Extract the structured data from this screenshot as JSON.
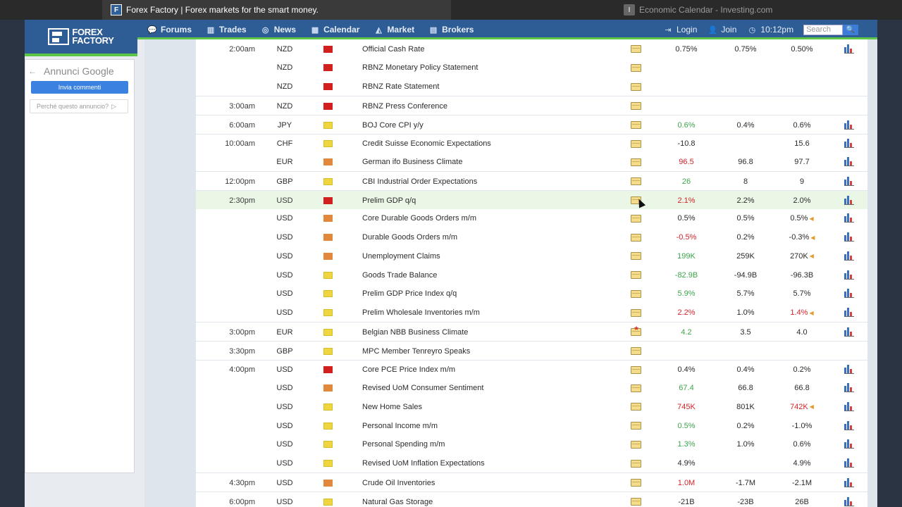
{
  "browser": {
    "active_tab": "Forex Factory | Forex markets for the smart money.",
    "inactive_tab": "Economic Calendar - Investing.com"
  },
  "site": {
    "logo_line1": "FOREX",
    "logo_line2": "FACTORY",
    "nav": [
      "Forums",
      "Trades",
      "News",
      "Calendar",
      "Market",
      "Brokers"
    ],
    "login": "Login",
    "join": "Join",
    "time": "10:12pm",
    "search_placeholder": "Search"
  },
  "ad": {
    "title": "Annunci Google",
    "feedback": "Invia commenti",
    "why": "Perché questo annuncio?"
  },
  "colors": {
    "impact_high": "#d2201f",
    "impact_medium": "#e2883c",
    "impact_low": "#efd641",
    "better": "#3da54b",
    "worse": "#d4232a"
  },
  "calendar": [
    {
      "time": "2:00am",
      "cur": "NZD",
      "impact": "red",
      "event": "Official Cash Rate",
      "actual": "0.75%",
      "aclass": "neutral",
      "forecast": "0.75%",
      "previous": "0.50%",
      "rev": false,
      "graph": true,
      "sep": true
    },
    {
      "time": "",
      "cur": "NZD",
      "impact": "red",
      "event": "RBNZ Monetary Policy Statement",
      "actual": "",
      "aclass": "neutral",
      "forecast": "",
      "previous": "",
      "rev": false,
      "graph": false,
      "sep": false
    },
    {
      "time": "",
      "cur": "NZD",
      "impact": "red",
      "event": "RBNZ Rate Statement",
      "actual": "",
      "aclass": "neutral",
      "forecast": "",
      "previous": "",
      "rev": false,
      "graph": false,
      "sep": false
    },
    {
      "time": "3:00am",
      "cur": "NZD",
      "impact": "red",
      "event": "RBNZ Press Conference",
      "actual": "",
      "aclass": "neutral",
      "forecast": "",
      "previous": "",
      "rev": false,
      "graph": false,
      "sep": true
    },
    {
      "time": "6:00am",
      "cur": "JPY",
      "impact": "yellow",
      "event": "BOJ Core CPI y/y",
      "actual": "0.6%",
      "aclass": "good",
      "forecast": "0.4%",
      "previous": "0.6%",
      "rev": false,
      "graph": true,
      "sep": true
    },
    {
      "time": "10:00am",
      "cur": "CHF",
      "impact": "yellow",
      "event": "Credit Suisse Economic Expectations",
      "actual": "-10.8",
      "aclass": "neutral",
      "forecast": "",
      "previous": "15.6",
      "rev": false,
      "graph": true,
      "sep": true
    },
    {
      "time": "",
      "cur": "EUR",
      "impact": "orange",
      "event": "German ifo Business Climate",
      "actual": "96.5",
      "aclass": "bad",
      "forecast": "96.8",
      "previous": "97.7",
      "rev": false,
      "graph": true,
      "sep": false
    },
    {
      "time": "12:00pm",
      "cur": "GBP",
      "impact": "yellow",
      "event": "CBI Industrial Order Expectations",
      "actual": "26",
      "aclass": "good",
      "forecast": "8",
      "previous": "9",
      "rev": false,
      "graph": true,
      "sep": true
    },
    {
      "time": "2:30pm",
      "cur": "USD",
      "impact": "red",
      "event": "Prelim GDP q/q",
      "actual": "2.1%",
      "aclass": "bad",
      "forecast": "2.2%",
      "previous": "2.0%",
      "rev": false,
      "graph": true,
      "sep": true,
      "hl": true
    },
    {
      "time": "",
      "cur": "USD",
      "impact": "orange",
      "event": "Core Durable Goods Orders m/m",
      "actual": "0.5%",
      "aclass": "neutral",
      "forecast": "0.5%",
      "previous": "0.5%",
      "rev": true,
      "graph": true,
      "sep": false
    },
    {
      "time": "",
      "cur": "USD",
      "impact": "orange",
      "event": "Durable Goods Orders m/m",
      "actual": "-0.5%",
      "aclass": "bad",
      "forecast": "0.2%",
      "previous": "-0.3%",
      "rev": true,
      "graph": true,
      "sep": false
    },
    {
      "time": "",
      "cur": "USD",
      "impact": "orange",
      "event": "Unemployment Claims",
      "actual": "199K",
      "aclass": "good",
      "forecast": "259K",
      "previous": "270K",
      "rev": true,
      "graph": true,
      "sep": false
    },
    {
      "time": "",
      "cur": "USD",
      "impact": "yellow",
      "event": "Goods Trade Balance",
      "actual": "-82.9B",
      "aclass": "good",
      "forecast": "-94.9B",
      "previous": "-96.3B",
      "rev": false,
      "graph": true,
      "sep": false
    },
    {
      "time": "",
      "cur": "USD",
      "impact": "yellow",
      "event": "Prelim GDP Price Index q/q",
      "actual": "5.9%",
      "aclass": "good",
      "forecast": "5.7%",
      "previous": "5.7%",
      "rev": false,
      "graph": true,
      "sep": false
    },
    {
      "time": "",
      "cur": "USD",
      "impact": "yellow",
      "event": "Prelim Wholesale Inventories m/m",
      "actual": "2.2%",
      "aclass": "bad",
      "forecast": "1.0%",
      "previous": "1.4%",
      "pclass": "bad",
      "rev": true,
      "graph": true,
      "sep": false
    },
    {
      "time": "3:00pm",
      "cur": "EUR",
      "impact": "yellow",
      "event": "Belgian NBB Business Climate",
      "actual": "4.2",
      "aclass": "good",
      "forecast": "3.5",
      "previous": "4.0",
      "rev": false,
      "graph": true,
      "sep": true,
      "star": true
    },
    {
      "time": "3:30pm",
      "cur": "GBP",
      "impact": "yellow",
      "event": "MPC Member Tenreyro Speaks",
      "actual": "",
      "aclass": "neutral",
      "forecast": "",
      "previous": "",
      "rev": false,
      "graph": false,
      "sep": true
    },
    {
      "time": "4:00pm",
      "cur": "USD",
      "impact": "red",
      "event": "Core PCE Price Index m/m",
      "actual": "0.4%",
      "aclass": "neutral",
      "forecast": "0.4%",
      "previous": "0.2%",
      "rev": false,
      "graph": true,
      "sep": true
    },
    {
      "time": "",
      "cur": "USD",
      "impact": "orange",
      "event": "Revised UoM Consumer Sentiment",
      "actual": "67.4",
      "aclass": "good",
      "forecast": "66.8",
      "previous": "66.8",
      "rev": false,
      "graph": true,
      "sep": false
    },
    {
      "time": "",
      "cur": "USD",
      "impact": "yellow",
      "event": "New Home Sales",
      "actual": "745K",
      "aclass": "bad",
      "forecast": "801K",
      "previous": "742K",
      "pclass": "bad",
      "rev": true,
      "graph": true,
      "sep": false
    },
    {
      "time": "",
      "cur": "USD",
      "impact": "yellow",
      "event": "Personal Income m/m",
      "actual": "0.5%",
      "aclass": "good",
      "forecast": "0.2%",
      "previous": "-1.0%",
      "rev": false,
      "graph": true,
      "sep": false
    },
    {
      "time": "",
      "cur": "USD",
      "impact": "yellow",
      "event": "Personal Spending m/m",
      "actual": "1.3%",
      "aclass": "good",
      "forecast": "1.0%",
      "previous": "0.6%",
      "rev": false,
      "graph": true,
      "sep": false
    },
    {
      "time": "",
      "cur": "USD",
      "impact": "yellow",
      "event": "Revised UoM Inflation Expectations",
      "actual": "4.9%",
      "aclass": "neutral",
      "forecast": "",
      "previous": "4.9%",
      "rev": false,
      "graph": true,
      "sep": false
    },
    {
      "time": "4:30pm",
      "cur": "USD",
      "impact": "orange",
      "event": "Crude Oil Inventories",
      "actual": "1.0M",
      "aclass": "bad",
      "forecast": "-1.7M",
      "previous": "-2.1M",
      "rev": false,
      "graph": true,
      "sep": true
    },
    {
      "time": "6:00pm",
      "cur": "USD",
      "impact": "yellow",
      "event": "Natural Gas Storage",
      "actual": "-21B",
      "aclass": "neutral",
      "forecast": "-23B",
      "previous": "26B",
      "rev": false,
      "graph": true,
      "sep": true
    }
  ]
}
